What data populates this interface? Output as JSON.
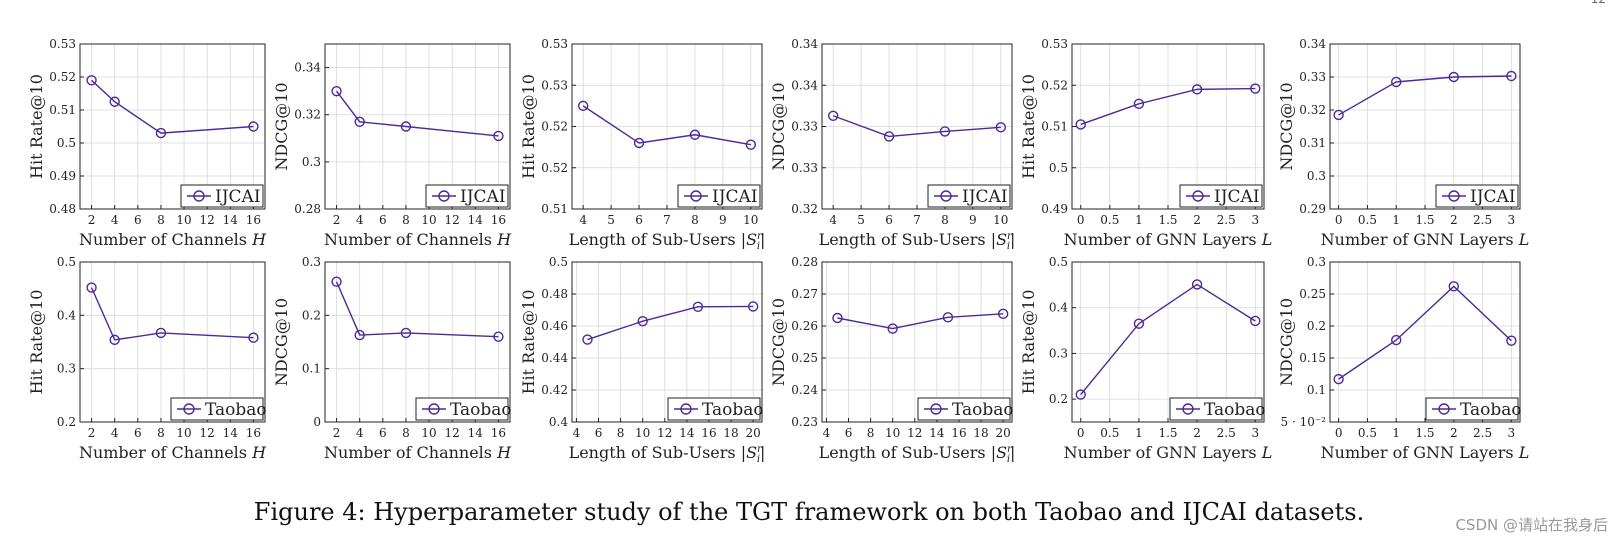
{
  "figure": {
    "caption": "Figure 4: Hyperparameter study of the TGT framework on both Taobao and IJCAI datasets.",
    "watermark": "CSDN @请站在我身后",
    "page_number": "12"
  },
  "colors": {
    "line": "#4b2a9a",
    "axis": "#222222",
    "grid": "#d8d8d8",
    "text": "#222222"
  },
  "chart_data": [
    {
      "type": "line",
      "legend": "IJCAI",
      "xlabel": "Number of Channels",
      "xvar": "H",
      "ylabel": "Hit Rate@10",
      "x": [
        2,
        4,
        8,
        16
      ],
      "values": [
        0.519,
        0.5125,
        0.503,
        0.505
      ],
      "xticks": [
        "2",
        "4",
        "6",
        "8",
        "10",
        "12",
        "14",
        "16"
      ],
      "xtick_values": [
        2,
        4,
        6,
        8,
        10,
        12,
        14,
        16
      ],
      "yticks": [
        "0.48",
        "0.49",
        "0.5",
        "0.51",
        "0.52",
        "0.53"
      ],
      "ylim": [
        0.48,
        0.53
      ],
      "xlim": [
        1,
        17
      ]
    },
    {
      "type": "line",
      "legend": "IJCAI",
      "xlabel": "Number of Channels",
      "xvar": "H",
      "ylabel": "NDCG@10",
      "x": [
        2,
        4,
        8,
        16
      ],
      "values": [
        0.33,
        0.317,
        0.315,
        0.311
      ],
      "xticks": [
        "2",
        "4",
        "6",
        "8",
        "10",
        "12",
        "14",
        "16"
      ],
      "xtick_values": [
        2,
        4,
        6,
        8,
        10,
        12,
        14,
        16
      ],
      "yticks": [
        "0.28",
        "0.3",
        "0.32",
        "0.34"
      ],
      "ylim": [
        0.28,
        0.35
      ],
      "xlim": [
        1,
        17
      ]
    },
    {
      "type": "line",
      "legend": "IJCAI",
      "xlabel": "Length of Sub-Users",
      "xvar": "|S",
      "ylabel": "Hit Rate@10",
      "x": [
        4,
        6,
        8,
        10
      ],
      "values": [
        0.5225,
        0.518,
        0.519,
        0.5178
      ],
      "xticks": [
        "4",
        "5",
        "6",
        "7",
        "8",
        "9",
        "10"
      ],
      "xtick_values": [
        4,
        5,
        6,
        7,
        8,
        9,
        10
      ],
      "yticks": [
        "0.51",
        "0.52",
        "0.52",
        "0.53",
        "0.53"
      ],
      "ylim": [
        0.51,
        0.53
      ],
      "xlim": [
        3.6,
        10.4
      ]
    },
    {
      "type": "line",
      "legend": "IJCAI",
      "xlabel": "Length of Sub-Users",
      "xvar": "|S",
      "ylabel": "NDCG@10",
      "x": [
        4,
        6,
        8,
        10
      ],
      "values": [
        0.3313,
        0.3288,
        0.3294,
        0.3299
      ],
      "xticks": [
        "4",
        "5",
        "6",
        "7",
        "8",
        "9",
        "10"
      ],
      "xtick_values": [
        4,
        5,
        6,
        7,
        8,
        9,
        10
      ],
      "yticks": [
        "0.32",
        "0.33",
        "0.33",
        "0.34",
        "0.34"
      ],
      "ylim": [
        0.32,
        0.34
      ],
      "xlim": [
        3.6,
        10.4
      ]
    },
    {
      "type": "line",
      "legend": "IJCAI",
      "xlabel": "Number of GNN Layers",
      "xvar": "L",
      "ylabel": "Hit Rate@10",
      "x": [
        0,
        1,
        2,
        3
      ],
      "values": [
        0.5105,
        0.5155,
        0.519,
        0.5192
      ],
      "xticks": [
        "0",
        "0.5",
        "1",
        "1.5",
        "2",
        "2.5",
        "3"
      ],
      "xtick_values": [
        0,
        0.5,
        1,
        1.5,
        2,
        2.5,
        3
      ],
      "yticks": [
        "0.49",
        "0.5",
        "0.51",
        "0.52",
        "0.53"
      ],
      "ylim": [
        0.49,
        0.53
      ],
      "xlim": [
        -0.15,
        3.15
      ]
    },
    {
      "type": "line",
      "legend": "IJCAI",
      "xlabel": "Number of GNN Layers",
      "xvar": "L",
      "ylabel": "NDCG@10",
      "x": [
        0,
        1,
        2,
        3
      ],
      "values": [
        0.3185,
        0.3285,
        0.33,
        0.3303
      ],
      "xticks": [
        "0",
        "0.5",
        "1",
        "1.5",
        "2",
        "2.5",
        "3"
      ],
      "xtick_values": [
        0,
        0.5,
        1,
        1.5,
        2,
        2.5,
        3
      ],
      "yticks": [
        "0.29",
        "0.3",
        "0.31",
        "0.32",
        "0.33",
        "0.34"
      ],
      "ylim": [
        0.29,
        0.34
      ],
      "xlim": [
        -0.15,
        3.15
      ]
    },
    {
      "type": "line",
      "legend": "Taobao",
      "xlabel": "Number of Channels",
      "xvar": "H",
      "ylabel": "Hit Rate@10",
      "x": [
        2,
        4,
        8,
        16
      ],
      "values": [
        0.452,
        0.354,
        0.367,
        0.358
      ],
      "xticks": [
        "2",
        "4",
        "6",
        "8",
        "10",
        "12",
        "14",
        "16"
      ],
      "xtick_values": [
        2,
        4,
        6,
        8,
        10,
        12,
        14,
        16
      ],
      "yticks": [
        "0.2",
        "0.3",
        "0.4",
        "0.5"
      ],
      "ylim": [
        0.2,
        0.5
      ],
      "xlim": [
        1,
        17
      ]
    },
    {
      "type": "line",
      "legend": "Taobao",
      "xlabel": "Number of Channels",
      "xvar": "H",
      "ylabel": "NDCG@10",
      "x": [
        2,
        4,
        8,
        16
      ],
      "values": [
        0.263,
        0.163,
        0.167,
        0.16
      ],
      "xticks": [
        "2",
        "4",
        "6",
        "8",
        "10",
        "12",
        "14",
        "16"
      ],
      "xtick_values": [
        2,
        4,
        6,
        8,
        10,
        12,
        14,
        16
      ],
      "yticks": [
        "0",
        "0.1",
        "0.2",
        "0.3"
      ],
      "ylim": [
        0,
        0.3
      ],
      "xlim": [
        1,
        17
      ]
    },
    {
      "type": "line",
      "legend": "Taobao",
      "xlabel": "Length of Sub-Users",
      "xvar": "|S",
      "ylabel": "Hit Rate@10",
      "x": [
        5,
        10,
        15,
        20
      ],
      "values": [
        0.4515,
        0.463,
        0.472,
        0.4722
      ],
      "xticks": [
        "4",
        "6",
        "8",
        "10",
        "12",
        "14",
        "16",
        "18",
        "20"
      ],
      "xtick_values": [
        4,
        6,
        8,
        10,
        12,
        14,
        16,
        18,
        20
      ],
      "yticks": [
        "0.4",
        "0.42",
        "0.44",
        "0.46",
        "0.48",
        "0.5"
      ],
      "ylim": [
        0.4,
        0.5
      ],
      "xlim": [
        3.6,
        20.8
      ]
    },
    {
      "type": "line",
      "legend": "Taobao",
      "xlabel": "Length of Sub-Users",
      "xvar": "|S",
      "ylabel": "NDCG@10",
      "x": [
        5,
        10,
        15,
        20
      ],
      "values": [
        0.2625,
        0.2592,
        0.2627,
        0.2638
      ],
      "xticks": [
        "4",
        "6",
        "8",
        "10",
        "12",
        "14",
        "16",
        "18",
        "20"
      ],
      "xtick_values": [
        4,
        6,
        8,
        10,
        12,
        14,
        16,
        18,
        20
      ],
      "yticks": [
        "0.23",
        "0.24",
        "0.25",
        "0.26",
        "0.27",
        "0.28"
      ],
      "ylim": [
        0.23,
        0.28
      ],
      "xlim": [
        3.6,
        20.8
      ]
    },
    {
      "type": "line",
      "legend": "Taobao",
      "xlabel": "Number of GNN Layers",
      "xvar": "L",
      "ylabel": "Hit Rate@10",
      "x": [
        0,
        1,
        2,
        3
      ],
      "values": [
        0.21,
        0.365,
        0.451,
        0.371
      ],
      "xticks": [
        "0",
        "0.5",
        "1",
        "1.5",
        "2",
        "2.5",
        "3"
      ],
      "xtick_values": [
        0,
        0.5,
        1,
        1.5,
        2,
        2.5,
        3
      ],
      "yticks": [
        "0.2",
        "0.3",
        "0.4",
        "0.5"
      ],
      "ylim": [
        0.15,
        0.5
      ],
      "xlim": [
        -0.15,
        3.15
      ]
    },
    {
      "type": "line",
      "legend": "Taobao",
      "xlabel": "Number of GNN Layers",
      "xvar": "L",
      "ylabel": "NDCG@10",
      "x": [
        0,
        1,
        2,
        3
      ],
      "values": [
        0.117,
        0.178,
        0.262,
        0.177
      ],
      "xticks": [
        "0",
        "0.5",
        "1",
        "1.5",
        "2",
        "2.5",
        "3"
      ],
      "xtick_values": [
        0,
        0.5,
        1,
        1.5,
        2,
        2.5,
        3
      ],
      "yticks": [
        "5 · 10⁻²",
        "0.1",
        "0.15",
        "0.2",
        "0.25",
        "0.3"
      ],
      "ytick_values": [
        0.05,
        0.1,
        0.15,
        0.2,
        0.25,
        0.3
      ],
      "ylim": [
        0.05,
        0.3
      ],
      "xlim": [
        -0.15,
        3.15
      ]
    }
  ]
}
